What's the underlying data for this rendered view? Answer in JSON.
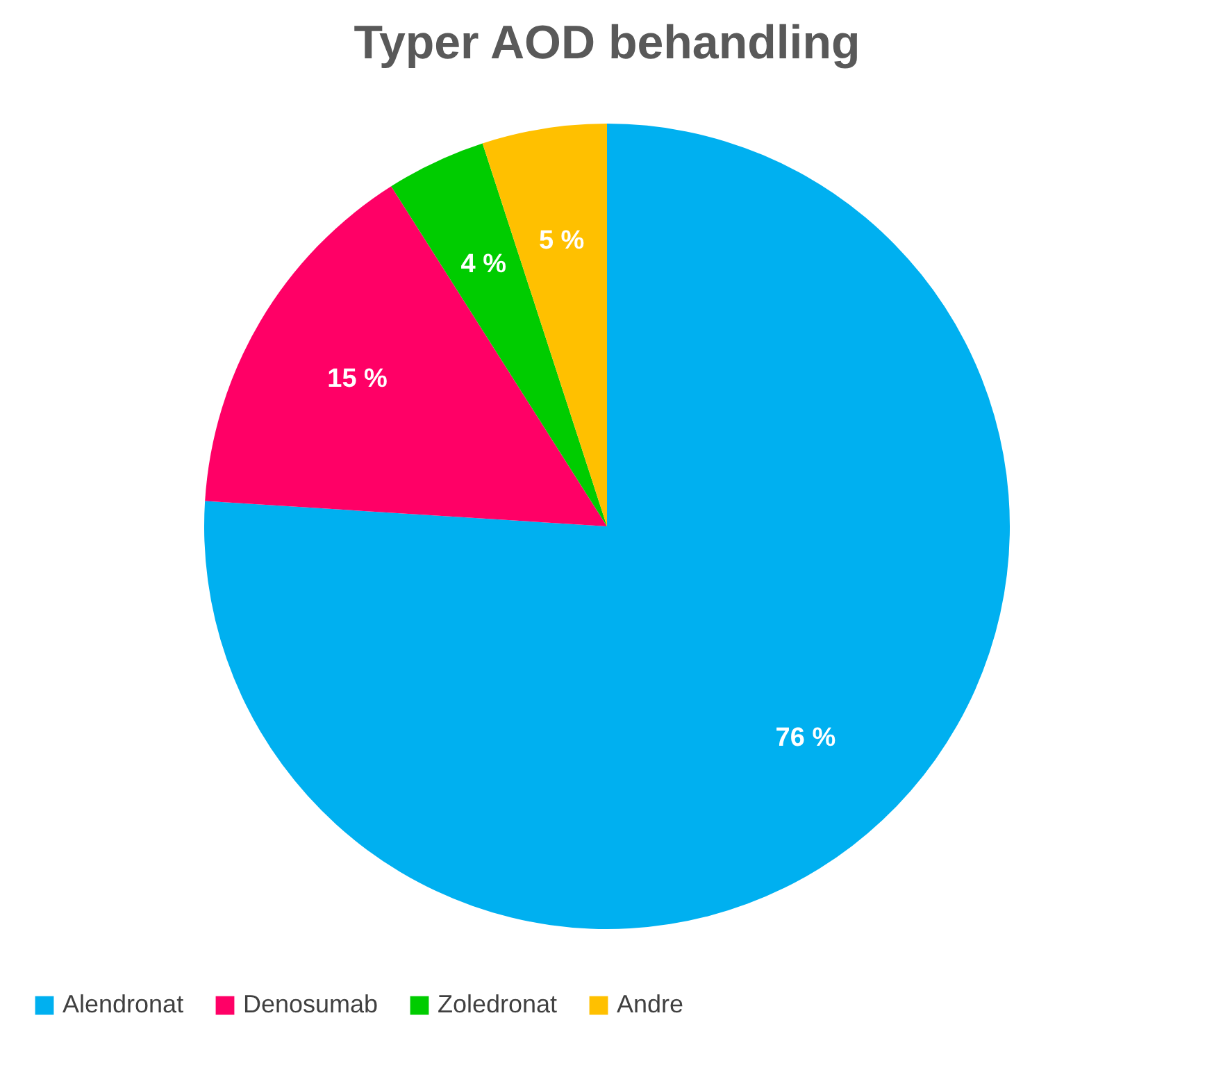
{
  "chart_data": {
    "type": "pie",
    "title": "Typer AOD behandling",
    "categories": [
      "Alendronat",
      "Denosumab",
      "Zoledronat",
      "Andre"
    ],
    "values": [
      76,
      15,
      4,
      5
    ],
    "colors": [
      "#00b0f0",
      "#ff0066",
      "#00cc00",
      "#ffc000"
    ],
    "value_labels": [
      "76 %",
      "15 %",
      "4 %",
      "5 %"
    ],
    "legend": "bottom"
  }
}
